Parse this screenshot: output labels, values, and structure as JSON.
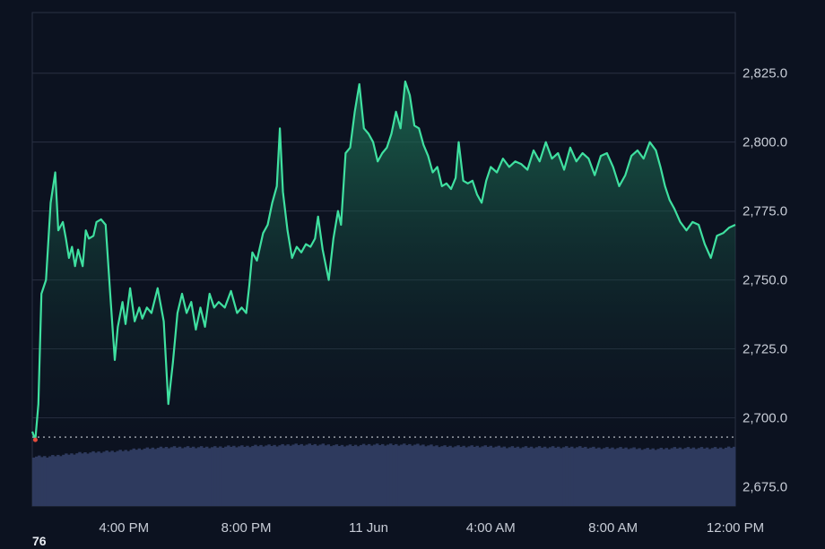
{
  "chart_data": {
    "type": "area",
    "title": "",
    "xlabel": "",
    "ylabel": "",
    "x_ticks": [
      {
        "label": "4:00 PM",
        "t": 4
      },
      {
        "label": "8:00 PM",
        "t": 8
      },
      {
        "label": "11 Jun",
        "t": 12
      },
      {
        "label": "4:00 AM",
        "t": 16
      },
      {
        "label": "8:00 AM",
        "t": 20
      },
      {
        "label": "12:00 PM",
        "t": 24
      }
    ],
    "xlim": [
      1.0,
      24.0
    ],
    "y_ticks": [
      "2,675.0",
      "2,700.0",
      "2,725.0",
      "2,750.0",
      "2,775.0",
      "2,800.0",
      "2,825.0"
    ],
    "y_tick_values": [
      2675,
      2700,
      2725,
      2750,
      2775,
      2800,
      2825
    ],
    "ylim": [
      2668,
      2847
    ],
    "baseline": 2693,
    "grid": true,
    "colors": {
      "line": "#3fe0a0",
      "fill_top": "#1e7a5a",
      "fill_bottom": "#0c1220",
      "baseline": "#c9cdd4",
      "start_marker": "#e74c3c",
      "volume": "#2e3a5e",
      "grid": "#2a3143",
      "background": "#0c1220"
    },
    "series": [
      {
        "values": [
          [
            1.0,
            2695
          ],
          [
            1.1,
            2692
          ],
          [
            1.2,
            2705
          ],
          [
            1.3,
            2745
          ],
          [
            1.45,
            2750
          ],
          [
            1.6,
            2778
          ],
          [
            1.75,
            2789
          ],
          [
            1.85,
            2768
          ],
          [
            2.0,
            2771
          ],
          [
            2.1,
            2765
          ],
          [
            2.2,
            2758
          ],
          [
            2.3,
            2762
          ],
          [
            2.4,
            2755
          ],
          [
            2.5,
            2761
          ],
          [
            2.65,
            2755
          ],
          [
            2.75,
            2768
          ],
          [
            2.85,
            2765
          ],
          [
            3.0,
            2766
          ],
          [
            3.1,
            2771
          ],
          [
            3.25,
            2772
          ],
          [
            3.4,
            2770
          ],
          [
            3.55,
            2745
          ],
          [
            3.7,
            2721
          ],
          [
            3.8,
            2733
          ],
          [
            3.95,
            2742
          ],
          [
            4.05,
            2734
          ],
          [
            4.2,
            2747
          ],
          [
            4.35,
            2735
          ],
          [
            4.5,
            2740
          ],
          [
            4.6,
            2736
          ],
          [
            4.75,
            2740
          ],
          [
            4.9,
            2738
          ],
          [
            5.1,
            2747
          ],
          [
            5.3,
            2735
          ],
          [
            5.45,
            2705
          ],
          [
            5.6,
            2720
          ],
          [
            5.75,
            2738
          ],
          [
            5.9,
            2745
          ],
          [
            6.05,
            2738
          ],
          [
            6.2,
            2742
          ],
          [
            6.35,
            2732
          ],
          [
            6.5,
            2740
          ],
          [
            6.65,
            2733
          ],
          [
            6.8,
            2745
          ],
          [
            6.95,
            2740
          ],
          [
            7.1,
            2742
          ],
          [
            7.3,
            2740
          ],
          [
            7.5,
            2746
          ],
          [
            7.7,
            2738
          ],
          [
            7.85,
            2740
          ],
          [
            8.0,
            2738
          ],
          [
            8.1,
            2748
          ],
          [
            8.2,
            2760
          ],
          [
            8.35,
            2757
          ],
          [
            8.55,
            2767
          ],
          [
            8.7,
            2770
          ],
          [
            8.85,
            2778
          ],
          [
            9.0,
            2784
          ],
          [
            9.1,
            2805
          ],
          [
            9.2,
            2782
          ],
          [
            9.35,
            2768
          ],
          [
            9.5,
            2758
          ],
          [
            9.65,
            2762
          ],
          [
            9.8,
            2760
          ],
          [
            9.95,
            2763
          ],
          [
            10.1,
            2762
          ],
          [
            10.25,
            2765
          ],
          [
            10.35,
            2773
          ],
          [
            10.5,
            2761
          ],
          [
            10.7,
            2750
          ],
          [
            10.85,
            2765
          ],
          [
            11.0,
            2775
          ],
          [
            11.1,
            2770
          ],
          [
            11.25,
            2796
          ],
          [
            11.4,
            2798
          ],
          [
            11.55,
            2811
          ],
          [
            11.7,
            2821
          ],
          [
            11.85,
            2805
          ],
          [
            12.0,
            2803
          ],
          [
            12.15,
            2800
          ],
          [
            12.3,
            2793
          ],
          [
            12.45,
            2796
          ],
          [
            12.6,
            2798
          ],
          [
            12.75,
            2803
          ],
          [
            12.9,
            2811
          ],
          [
            13.05,
            2805
          ],
          [
            13.2,
            2822
          ],
          [
            13.35,
            2817
          ],
          [
            13.5,
            2806
          ],
          [
            13.65,
            2805
          ],
          [
            13.8,
            2799
          ],
          [
            13.95,
            2795
          ],
          [
            14.1,
            2789
          ],
          [
            14.25,
            2791
          ],
          [
            14.4,
            2784
          ],
          [
            14.55,
            2785
          ],
          [
            14.7,
            2783
          ],
          [
            14.85,
            2787
          ],
          [
            14.95,
            2800
          ],
          [
            15.1,
            2786
          ],
          [
            15.25,
            2785
          ],
          [
            15.4,
            2786
          ],
          [
            15.55,
            2781
          ],
          [
            15.7,
            2778
          ],
          [
            15.85,
            2786
          ],
          [
            16.0,
            2791
          ],
          [
            16.2,
            2789
          ],
          [
            16.4,
            2794
          ],
          [
            16.6,
            2791
          ],
          [
            16.8,
            2793
          ],
          [
            17.0,
            2792
          ],
          [
            17.2,
            2790
          ],
          [
            17.4,
            2797
          ],
          [
            17.6,
            2793
          ],
          [
            17.8,
            2800
          ],
          [
            18.0,
            2794
          ],
          [
            18.2,
            2796
          ],
          [
            18.4,
            2790
          ],
          [
            18.6,
            2798
          ],
          [
            18.8,
            2793
          ],
          [
            19.0,
            2796
          ],
          [
            19.2,
            2794
          ],
          [
            19.4,
            2788
          ],
          [
            19.6,
            2795
          ],
          [
            19.8,
            2796
          ],
          [
            20.0,
            2791
          ],
          [
            20.2,
            2784
          ],
          [
            20.4,
            2788
          ],
          [
            20.6,
            2795
          ],
          [
            20.8,
            2797
          ],
          [
            21.0,
            2794
          ],
          [
            21.2,
            2800
          ],
          [
            21.4,
            2797
          ],
          [
            21.55,
            2791
          ],
          [
            21.7,
            2784
          ],
          [
            21.85,
            2779
          ],
          [
            22.0,
            2776
          ],
          [
            22.2,
            2771
          ],
          [
            22.4,
            2768
          ],
          [
            22.6,
            2771
          ],
          [
            22.8,
            2770
          ],
          [
            23.0,
            2763
          ],
          [
            23.2,
            2758
          ],
          [
            23.4,
            2766
          ],
          [
            23.6,
            2767
          ],
          [
            23.8,
            2769
          ],
          [
            24.0,
            2770
          ]
        ]
      }
    ],
    "volume": {
      "ylim": [
        0,
        100
      ],
      "values": [
        [
          1.0,
          58
        ],
        [
          1.5,
          58
        ],
        [
          2.0,
          60
        ],
        [
          2.5,
          62
        ],
        [
          3.0,
          63
        ],
        [
          3.5,
          64
        ],
        [
          4.0,
          65
        ],
        [
          4.5,
          67
        ],
        [
          5.0,
          68
        ],
        [
          5.5,
          69
        ],
        [
          6.0,
          69
        ],
        [
          6.5,
          69
        ],
        [
          7.0,
          69
        ],
        [
          7.5,
          70
        ],
        [
          8.0,
          70
        ],
        [
          8.5,
          71
        ],
        [
          9.0,
          71
        ],
        [
          9.5,
          72
        ],
        [
          10.0,
          72
        ],
        [
          10.5,
          72
        ],
        [
          11.0,
          71
        ],
        [
          11.5,
          71
        ],
        [
          12.0,
          72
        ],
        [
          12.5,
          72
        ],
        [
          13.0,
          72
        ],
        [
          13.5,
          72
        ],
        [
          14.0,
          71
        ],
        [
          14.5,
          70
        ],
        [
          15.0,
          70
        ],
        [
          15.5,
          70
        ],
        [
          16.0,
          70
        ],
        [
          16.5,
          69
        ],
        [
          17.0,
          69
        ],
        [
          17.5,
          69
        ],
        [
          18.0,
          69
        ],
        [
          18.5,
          69
        ],
        [
          19.0,
          69
        ],
        [
          19.5,
          68
        ],
        [
          20.0,
          68
        ],
        [
          20.5,
          68
        ],
        [
          21.0,
          67
        ],
        [
          21.5,
          67
        ],
        [
          22.0,
          68
        ],
        [
          22.5,
          68
        ],
        [
          23.0,
          68
        ],
        [
          23.5,
          68
        ],
        [
          24.0,
          69
        ]
      ]
    },
    "corner_label": "76"
  }
}
